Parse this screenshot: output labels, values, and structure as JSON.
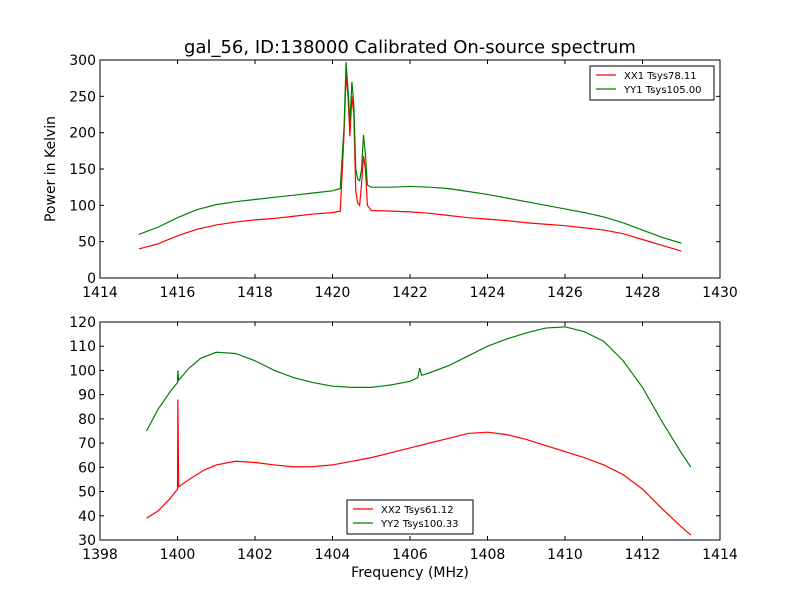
{
  "figure": {
    "title": "gal_56, ID:138000 Calibrated On-source spectrum"
  },
  "chart_data": [
    {
      "type": "line",
      "title": "gal_56, ID:138000 Calibrated On-source spectrum",
      "xlabel": "",
      "ylabel": "Power in Kelvin",
      "xlim": [
        1414,
        1430
      ],
      "ylim": [
        0,
        300
      ],
      "xticks": [
        1414,
        1416,
        1418,
        1420,
        1422,
        1424,
        1426,
        1428,
        1430
      ],
      "yticks": [
        0,
        50,
        100,
        150,
        200,
        250,
        300
      ],
      "grid": false,
      "legend_position": "top-right",
      "series": [
        {
          "name": "XX1 Tsys78.11",
          "color": "#ff0000",
          "points": [
            [
              1415.0,
              40
            ],
            [
              1415.5,
              47
            ],
            [
              1416.0,
              58
            ],
            [
              1416.5,
              67
            ],
            [
              1417.0,
              73
            ],
            [
              1417.5,
              77
            ],
            [
              1418.0,
              80
            ],
            [
              1418.5,
              82
            ],
            [
              1419.0,
              85
            ],
            [
              1419.5,
              88
            ],
            [
              1420.0,
              90
            ],
            [
              1420.2,
              92
            ],
            [
              1420.3,
              200
            ],
            [
              1420.35,
              280
            ],
            [
              1420.4,
              250
            ],
            [
              1420.45,
              195
            ],
            [
              1420.5,
              250
            ],
            [
              1420.55,
              225
            ],
            [
              1420.6,
              120
            ],
            [
              1420.65,
              103
            ],
            [
              1420.7,
              100
            ],
            [
              1420.75,
              130
            ],
            [
              1420.8,
              168
            ],
            [
              1420.85,
              150
            ],
            [
              1420.9,
              100
            ],
            [
              1421.0,
              93
            ],
            [
              1421.5,
              92
            ],
            [
              1422.0,
              91
            ],
            [
              1422.5,
              89
            ],
            [
              1423.0,
              86
            ],
            [
              1423.5,
              83
            ],
            [
              1424.0,
              81
            ],
            [
              1424.5,
              79
            ],
            [
              1425.0,
              76
            ],
            [
              1425.5,
              74
            ],
            [
              1426.0,
              72
            ],
            [
              1426.5,
              69
            ],
            [
              1427.0,
              66
            ],
            [
              1427.5,
              61
            ],
            [
              1428.0,
              53
            ],
            [
              1428.5,
              45
            ],
            [
              1429.0,
              37
            ]
          ]
        },
        {
          "name": "YY1 Tsys105.00",
          "color": "#008000",
          "points": [
            [
              1415.0,
              60
            ],
            [
              1415.5,
              70
            ],
            [
              1416.0,
              83
            ],
            [
              1416.5,
              94
            ],
            [
              1417.0,
              101
            ],
            [
              1417.5,
              105
            ],
            [
              1418.0,
              108
            ],
            [
              1418.5,
              111
            ],
            [
              1419.0,
              114
            ],
            [
              1419.5,
              117
            ],
            [
              1420.0,
              120
            ],
            [
              1420.2,
              123
            ],
            [
              1420.3,
              210
            ],
            [
              1420.35,
              297
            ],
            [
              1420.4,
              260
            ],
            [
              1420.45,
              215
            ],
            [
              1420.5,
              270
            ],
            [
              1420.55,
              240
            ],
            [
              1420.6,
              150
            ],
            [
              1420.65,
              136
            ],
            [
              1420.7,
              134
            ],
            [
              1420.75,
              150
            ],
            [
              1420.8,
              197
            ],
            [
              1420.85,
              170
            ],
            [
              1420.9,
              128
            ],
            [
              1421.0,
              125
            ],
            [
              1421.5,
              125
            ],
            [
              1422.0,
              126
            ],
            [
              1422.5,
              125
            ],
            [
              1423.0,
              123
            ],
            [
              1423.5,
              119
            ],
            [
              1424.0,
              115
            ],
            [
              1424.5,
              110
            ],
            [
              1425.0,
              105
            ],
            [
              1425.5,
              100
            ],
            [
              1426.0,
              95
            ],
            [
              1426.5,
              90
            ],
            [
              1427.0,
              84
            ],
            [
              1427.5,
              76
            ],
            [
              1428.0,
              66
            ],
            [
              1428.5,
              56
            ],
            [
              1429.0,
              48
            ]
          ]
        }
      ]
    },
    {
      "type": "line",
      "title": "",
      "xlabel": "Frequency (MHz)",
      "ylabel": "",
      "xlim": [
        1398,
        1414
      ],
      "ylim": [
        30,
        120
      ],
      "xticks": [
        1398,
        1400,
        1402,
        1404,
        1406,
        1408,
        1410,
        1412,
        1414
      ],
      "yticks": [
        30,
        40,
        50,
        60,
        70,
        80,
        90,
        100,
        110,
        120
      ],
      "grid": false,
      "legend_position": "bottom-center",
      "series": [
        {
          "name": "XX2 Tsys61.12",
          "color": "#ff0000",
          "points": [
            [
              1399.2,
              39
            ],
            [
              1399.5,
              42
            ],
            [
              1399.8,
              47
            ],
            [
              1400.0,
              51
            ],
            [
              1400.01,
              88
            ],
            [
              1400.03,
              52
            ],
            [
              1400.3,
              55
            ],
            [
              1400.7,
              59
            ],
            [
              1401.0,
              61
            ],
            [
              1401.5,
              62.5
            ],
            [
              1402.0,
              62
            ],
            [
              1402.5,
              61
            ],
            [
              1403.0,
              60.2
            ],
            [
              1403.5,
              60.3
            ],
            [
              1404.0,
              61
            ],
            [
              1404.5,
              62.5
            ],
            [
              1405.0,
              64
            ],
            [
              1405.5,
              66
            ],
            [
              1406.0,
              68
            ],
            [
              1406.5,
              70
            ],
            [
              1407.0,
              72
            ],
            [
              1407.5,
              74
            ],
            [
              1408.0,
              74.5
            ],
            [
              1408.5,
              73.5
            ],
            [
              1409.0,
              71.5
            ],
            [
              1409.5,
              69
            ],
            [
              1410.0,
              66.5
            ],
            [
              1410.5,
              64
            ],
            [
              1411.0,
              61
            ],
            [
              1411.5,
              57
            ],
            [
              1412.0,
              51
            ],
            [
              1412.5,
              43
            ],
            [
              1413.0,
              35.5
            ],
            [
              1413.25,
              32
            ]
          ]
        },
        {
          "name": "YY2 Tsys100.33",
          "color": "#008000",
          "points": [
            [
              1399.2,
              75
            ],
            [
              1399.5,
              84
            ],
            [
              1399.8,
              91
            ],
            [
              1400.0,
              95
            ],
            [
              1400.01,
              100
            ],
            [
              1400.03,
              96
            ],
            [
              1400.3,
              101
            ],
            [
              1400.6,
              105
            ],
            [
              1401.0,
              107.5
            ],
            [
              1401.5,
              107
            ],
            [
              1402.0,
              104
            ],
            [
              1402.5,
              100
            ],
            [
              1403.0,
              97
            ],
            [
              1403.5,
              95
            ],
            [
              1404.0,
              93.5
            ],
            [
              1404.5,
              93
            ],
            [
              1405.0,
              93
            ],
            [
              1405.5,
              94
            ],
            [
              1406.0,
              95.5
            ],
            [
              1406.2,
              97
            ],
            [
              1406.25,
              101
            ],
            [
              1406.3,
              98
            ],
            [
              1406.5,
              99
            ],
            [
              1407.0,
              102
            ],
            [
              1407.5,
              106
            ],
            [
              1408.0,
              110
            ],
            [
              1408.5,
              113
            ],
            [
              1409.0,
              115.5
            ],
            [
              1409.5,
              117.5
            ],
            [
              1410.0,
              118
            ],
            [
              1410.5,
              116
            ],
            [
              1411.0,
              112
            ],
            [
              1411.5,
              104
            ],
            [
              1412.0,
              93
            ],
            [
              1412.5,
              79
            ],
            [
              1413.0,
              66
            ],
            [
              1413.25,
              60
            ]
          ]
        }
      ]
    }
  ]
}
